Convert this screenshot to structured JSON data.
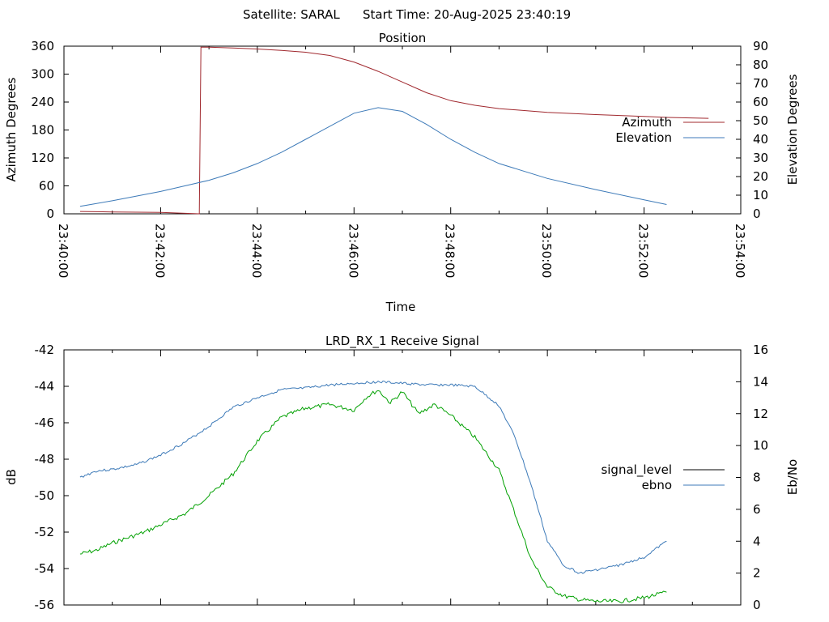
{
  "header": {
    "satellite_text": "Satellite: SARAL",
    "start_time_text": "Start Time: 20-Aug-2025 23:40:19"
  },
  "colors": {
    "azimuth": "#a0282e",
    "elevation": "#3d7ab8",
    "signal_level": "#000000",
    "ebno": "#3d7ab8",
    "signal_plotted": "#00a000"
  },
  "chart_data": [
    {
      "type": "line",
      "title": "Position",
      "xlabel": "Time",
      "ylabel": "Azimuth Degrees",
      "y2label": "Elevation Degrees",
      "ylim": [
        0,
        360
      ],
      "y2lim": [
        0,
        90
      ],
      "xlim": [
        "23:40:00",
        "23:54:00"
      ],
      "x_tick_labels": [
        "23:40:00",
        "23:42:00",
        "23:44:00",
        "23:46:00",
        "23:48:00",
        "23:50:00",
        "23:52:00",
        "23:54:00"
      ],
      "y_tick_labels": [
        "0",
        "60",
        "120",
        "180",
        "240",
        "300",
        "360"
      ],
      "y2_tick_labels": [
        "0",
        "10",
        "20",
        "30",
        "40",
        "50",
        "60",
        "70",
        "80",
        "90"
      ],
      "legend": "right",
      "series": [
        {
          "name": "Azimuth",
          "axis": "left",
          "x": [
            "23:40:20",
            "23:41:00",
            "23:42:00",
            "23:42:48",
            "23:42:50",
            "23:43:00",
            "23:43:30",
            "23:44:00",
            "23:44:30",
            "23:45:00",
            "23:45:30",
            "23:46:00",
            "23:46:30",
            "23:47:00",
            "23:47:30",
            "23:48:00",
            "23:48:30",
            "23:49:00",
            "23:50:00",
            "23:51:00",
            "23:52:00",
            "23:52:30",
            "23:53:20"
          ],
          "values": [
            5,
            4,
            3,
            0,
            358,
            358,
            356,
            354,
            351,
            347,
            340,
            326,
            306,
            283,
            260,
            243,
            233,
            226,
            218,
            213,
            209,
            207,
            205
          ]
        },
        {
          "name": "Elevation",
          "axis": "right",
          "x": [
            "23:40:20",
            "23:41:00",
            "23:42:00",
            "23:42:30",
            "23:43:00",
            "23:43:30",
            "23:44:00",
            "23:44:30",
            "23:45:00",
            "23:45:30",
            "23:46:00",
            "23:46:30",
            "23:47:00",
            "23:47:30",
            "23:48:00",
            "23:48:30",
            "23:49:00",
            "23:50:00",
            "23:51:00",
            "23:52:00",
            "23:52:28"
          ],
          "values": [
            4,
            7,
            12,
            15,
            18,
            22,
            27,
            33,
            40,
            47,
            54,
            57,
            55,
            48,
            40,
            33,
            27,
            19,
            13,
            7.5,
            5
          ]
        }
      ]
    },
    {
      "type": "line",
      "title": "LRD_RX_1 Receive Signal",
      "ylabel": "dB",
      "y2label": "Eb/No",
      "ylim": [
        -56,
        -42
      ],
      "y2lim": [
        0,
        16
      ],
      "xlim": [
        "23:40:00",
        "23:54:00"
      ],
      "y_tick_labels": [
        "-56",
        "-54",
        "-52",
        "-50",
        "-48",
        "-46",
        "-44",
        "-42"
      ],
      "y2_tick_labels": [
        "0",
        "2",
        "4",
        "6",
        "8",
        "10",
        "12",
        "14",
        "16"
      ],
      "legend": "right",
      "series": [
        {
          "name": "signal_level",
          "axis": "left",
          "x": [
            "23:40:20",
            "23:40:40",
            "23:41:00",
            "23:41:20",
            "23:41:40",
            "23:42:00",
            "23:42:30",
            "23:43:00",
            "23:43:30",
            "23:44:00",
            "23:44:30",
            "23:45:00",
            "23:45:30",
            "23:46:00",
            "23:46:15",
            "23:46:30",
            "23:46:45",
            "23:47:00",
            "23:47:20",
            "23:47:40",
            "23:48:00",
            "23:48:30",
            "23:49:00",
            "23:49:20",
            "23:49:40",
            "23:50:00",
            "23:50:20",
            "23:50:40",
            "23:51:00",
            "23:51:30",
            "23:52:00",
            "23:52:28"
          ],
          "values": [
            -53.2,
            -53.0,
            -52.6,
            -52.3,
            -52.0,
            -51.6,
            -51.0,
            -50.0,
            -48.8,
            -47.0,
            -45.7,
            -45.2,
            -45.0,
            -45.3,
            -44.6,
            -44.2,
            -44.9,
            -44.3,
            -45.5,
            -45.0,
            -45.6,
            -46.8,
            -48.6,
            -51.0,
            -53.5,
            -55.0,
            -55.5,
            -55.7,
            -55.8,
            -55.8,
            -55.6,
            -55.3
          ]
        },
        {
          "name": "ebno",
          "axis": "right",
          "x": [
            "23:40:20",
            "23:40:40",
            "23:41:00",
            "23:41:30",
            "23:42:00",
            "23:42:30",
            "23:43:00",
            "23:43:30",
            "23:44:00",
            "23:44:30",
            "23:45:00",
            "23:45:30",
            "23:46:00",
            "23:46:30",
            "23:47:00",
            "23:47:30",
            "23:48:00",
            "23:48:30",
            "23:49:00",
            "23:49:20",
            "23:49:40",
            "23:50:00",
            "23:50:20",
            "23:50:40",
            "23:51:00",
            "23:51:30",
            "23:52:00",
            "23:52:28"
          ],
          "values": [
            8.0,
            8.4,
            8.5,
            8.8,
            9.4,
            10.2,
            11.2,
            12.4,
            13.0,
            13.5,
            13.6,
            13.8,
            13.9,
            14.0,
            13.9,
            13.8,
            13.8,
            13.7,
            12.5,
            10.5,
            7.5,
            4.0,
            2.5,
            2.0,
            2.2,
            2.5,
            3.0,
            4.0
          ]
        }
      ]
    }
  ]
}
